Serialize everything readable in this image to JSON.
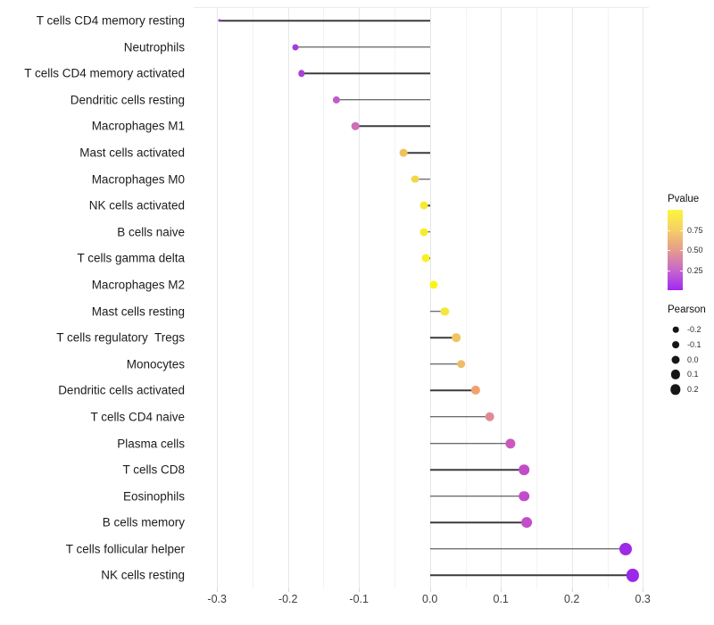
{
  "chart_data": {
    "type": "scatter",
    "variant": "lollipop",
    "title": "",
    "xlabel": "",
    "ylabel": "",
    "xlim": [
      -0.335,
      0.308
    ],
    "grid": "vertical-only",
    "x_ticks": [
      {
        "value": -0.3,
        "label": "-0.3"
      },
      {
        "value": -0.2,
        "label": "-0.2"
      },
      {
        "value": -0.1,
        "label": "-0.1"
      },
      {
        "value": 0.0,
        "label": "0.0"
      },
      {
        "value": 0.1,
        "label": "0.1"
      },
      {
        "value": 0.2,
        "label": "0.2"
      },
      {
        "value": 0.3,
        "label": "0.3"
      }
    ],
    "x_minor_ticks": [
      -0.25,
      -0.15,
      -0.05,
      0.05,
      0.15,
      0.25
    ],
    "points": [
      {
        "category": "T cells CD4 memory resting",
        "pearson": -0.297,
        "dot_color": "#A632D2",
        "dot_diameter": 3.2
      },
      {
        "category": "Neutrophils",
        "pearson": -0.19,
        "dot_color": "#A53BDC",
        "dot_diameter": 7.0
      },
      {
        "category": "T cells CD4 memory activated",
        "pearson": -0.181,
        "dot_color": "#A941D8",
        "dot_diameter": 7.4
      },
      {
        "category": "Dendritic cells resting",
        "pearson": -0.132,
        "dot_color": "#BE5CC9",
        "dot_diameter": 8.2
      },
      {
        "category": "Macrophages M1",
        "pearson": -0.105,
        "dot_color": "#CF6DB9",
        "dot_diameter": 8.6
      },
      {
        "category": "Mast cells activated",
        "pearson": -0.037,
        "dot_color": "#EFC35B",
        "dot_diameter": 8.8
      },
      {
        "category": "Macrophages M0",
        "pearson": -0.021,
        "dot_color": "#F2D849",
        "dot_diameter": 8.8
      },
      {
        "category": "NK cells activated",
        "pearson": -0.009,
        "dot_color": "#F6EA31",
        "dot_diameter": 9.0
      },
      {
        "category": "B cells naive",
        "pearson": -0.008,
        "dot_color": "#F7EC2C",
        "dot_diameter": 9.0
      },
      {
        "category": "T cells gamma delta",
        "pearson": -0.006,
        "dot_color": "#F8EF24",
        "dot_diameter": 9.0
      },
      {
        "category": "Macrophages M2",
        "pearson": 0.005,
        "dot_color": "#FBF317",
        "dot_diameter": 9.2
      },
      {
        "category": "Mast cells resting",
        "pearson": 0.021,
        "dot_color": "#F6E73E",
        "dot_diameter": 9.2
      },
      {
        "category": "T cells regulatory  Tregs",
        "pearson": 0.037,
        "dot_color": "#F0C55F",
        "dot_diameter": 9.6
      },
      {
        "category": "Monocytes",
        "pearson": 0.044,
        "dot_color": "#EEBC67",
        "dot_diameter": 9.6
      },
      {
        "category": "Dendritic cells activated",
        "pearson": 0.064,
        "dot_color": "#F0A26E",
        "dot_diameter": 10.2
      },
      {
        "category": "T cells CD4 naive",
        "pearson": 0.084,
        "dot_color": "#E18A96",
        "dot_diameter": 10.6
      },
      {
        "category": "Plasma cells",
        "pearson": 0.113,
        "dot_color": "#CB58BF",
        "dot_diameter": 11.2
      },
      {
        "category": "T cells CD8",
        "pearson": 0.133,
        "dot_color": "#C14DC8",
        "dot_diameter": 11.6
      },
      {
        "category": "Eosinophils",
        "pearson": 0.133,
        "dot_color": "#C14DC8",
        "dot_diameter": 11.6
      },
      {
        "category": "B cells memory",
        "pearson": 0.136,
        "dot_color": "#C14FC9",
        "dot_diameter": 11.8
      },
      {
        "category": "T cells follicular helper",
        "pearson": 0.276,
        "dot_color": "#9D2BE6",
        "dot_diameter": 14.0
      },
      {
        "category": "NK cells resting",
        "pearson": 0.286,
        "dot_color": "#9C28E8",
        "dot_diameter": 14.2
      }
    ],
    "legends": {
      "color": {
        "title": "Pvalue",
        "tick_labels": [
          "0.75",
          "0.50",
          "0.25"
        ],
        "gradient_stops": [
          "#FCF63D",
          "#F6CE66",
          "#E59C8C",
          "#C767CB",
          "#A228F5"
        ]
      },
      "size": {
        "title": "Pearson",
        "entries": [
          {
            "label": "-0.2",
            "diameter": 6.6
          },
          {
            "label": "-0.1",
            "diameter": 7.8
          },
          {
            "label": "0.0",
            "diameter": 9.0
          },
          {
            "label": "0.1",
            "diameter": 10.2
          },
          {
            "label": "0.2",
            "diameter": 11.4
          }
        ]
      }
    },
    "colors": {
      "stem": "#3b3b3b",
      "gridline_major": "#e7e7e7",
      "gridline_minor": "#f3f3f3",
      "background": "#ffffff"
    }
  }
}
